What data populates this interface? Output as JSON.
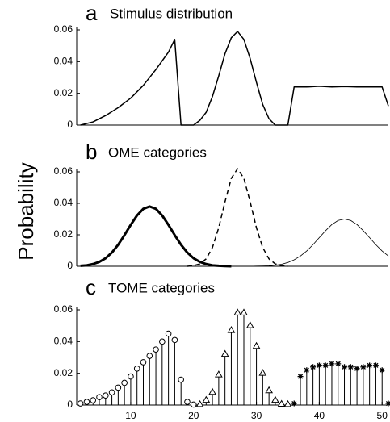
{
  "ylabel": "Probability",
  "chart_data": [
    {
      "type": "line",
      "panel_label": "a",
      "title": "Stimulus distribution",
      "x": [
        2,
        4,
        6,
        8,
        10,
        12,
        14,
        16,
        17,
        18,
        20,
        21,
        22,
        23,
        24,
        25,
        26,
        27,
        28,
        29,
        30,
        31,
        32,
        33,
        35,
        36,
        38,
        40,
        42,
        44,
        46,
        48,
        50,
        51
      ],
      "series": [
        {
          "color": "#000000",
          "line_style": "solid",
          "line_width": 1.5,
          "values": [
            0,
            0.002,
            0.006,
            0.011,
            0.017,
            0.025,
            0.035,
            0.046,
            0.054,
            0,
            0,
            0.003,
            0.008,
            0.018,
            0.031,
            0.045,
            0.055,
            0.059,
            0.054,
            0.042,
            0.027,
            0.013,
            0.004,
            0,
            0,
            0.024,
            0.024,
            0.0245,
            0.024,
            0.0243,
            0.024,
            0.024,
            0.024,
            0.012
          ]
        }
      ],
      "xlim": [
        1.4,
        51
      ],
      "ylim": [
        0,
        0.06
      ],
      "yticks": [
        0,
        {
          "value": 0.02,
          "label": "0.02"
        },
        {
          "value": 0.04,
          "label": "0.04"
        },
        {
          "value": 0.06,
          "label": "0.06"
        }
      ]
    },
    {
      "type": "line",
      "panel_label": "b",
      "title": "OME categories",
      "x": [
        2,
        3,
        4,
        5,
        6,
        7,
        8,
        9,
        10,
        11,
        12,
        13,
        14,
        15,
        16,
        17,
        18,
        19,
        20,
        21,
        22,
        23,
        24,
        25,
        26,
        27,
        28,
        29,
        30,
        31,
        32,
        33,
        34,
        35,
        36,
        37,
        38,
        39,
        40,
        41,
        42,
        43,
        44,
        45,
        46,
        47,
        48,
        49,
        50,
        51
      ],
      "series": [
        {
          "color": "#000000",
          "line_style": "solid",
          "line_width": 3,
          "values": [
            0.0003,
            0.0006,
            0.0014,
            0.0028,
            0.0051,
            0.0087,
            0.0137,
            0.0198,
            0.0263,
            0.0323,
            0.0365,
            0.038,
            0.0365,
            0.0323,
            0.0263,
            0.0198,
            0.0137,
            0.0087,
            0.0051,
            0.0028,
            0.0014,
            0.0006,
            0.0003,
            0.0001,
            0,
            null,
            null,
            null,
            null,
            null,
            null,
            null,
            null,
            null,
            null,
            null,
            null,
            null,
            null,
            null,
            null,
            null,
            null,
            null,
            null,
            null,
            null,
            null,
            null,
            null
          ]
        },
        {
          "color": "#000000",
          "line_style": "dashed",
          "line_width": 1.5,
          "values": [
            null,
            null,
            null,
            null,
            null,
            null,
            null,
            null,
            null,
            null,
            null,
            null,
            null,
            null,
            null,
            null,
            null,
            0,
            0.0004,
            0.0015,
            0.0047,
            0.0119,
            0.0245,
            0.041,
            0.0559,
            0.062,
            0.0559,
            0.041,
            0.0245,
            0.0119,
            0.0047,
            0.0015,
            0.0004,
            0,
            null,
            null,
            null,
            null,
            null,
            null,
            null,
            null,
            null,
            null,
            null,
            null,
            null,
            null,
            null,
            null
          ]
        },
        {
          "color": "#000000",
          "line_style": "solid",
          "line_width": 0.8,
          "values": [
            null,
            null,
            null,
            null,
            null,
            null,
            null,
            null,
            null,
            null,
            null,
            null,
            null,
            null,
            null,
            null,
            null,
            null,
            null,
            null,
            0,
            0,
            0,
            0,
            0,
            0,
            0,
            0,
            0.0001,
            0.0002,
            0.0003,
            0.0007,
            0.0013,
            0.0024,
            0.0041,
            0.0065,
            0.0097,
            0.0137,
            0.0182,
            0.0226,
            0.0265,
            0.0291,
            0.03,
            0.0291,
            0.0265,
            0.0226,
            0.0182,
            0.0137,
            0.0097,
            0.0065
          ]
        }
      ],
      "xlim": [
        1.4,
        51
      ],
      "ylim": [
        0,
        0.06
      ],
      "yticks": [
        0,
        {
          "value": 0.02,
          "label": "0.02"
        },
        {
          "value": 0.04,
          "label": "0.04"
        },
        {
          "value": 0.06,
          "label": "0.06"
        }
      ]
    },
    {
      "type": "stem",
      "panel_label": "c",
      "title": "TOME categories",
      "series": [
        {
          "marker": "circle",
          "color": "#000000",
          "x": [
            2,
            3,
            4,
            5,
            6,
            7,
            8,
            9,
            10,
            11,
            12,
            13,
            14,
            15,
            16,
            17,
            18,
            19,
            20
          ],
          "values": [
            0.001,
            0.002,
            0.003,
            0.005,
            0.006,
            0.008,
            0.011,
            0.014,
            0.018,
            0.023,
            0.027,
            0.031,
            0.035,
            0.04,
            0.045,
            0.041,
            0.016,
            0.002,
            0.0003
          ]
        },
        {
          "marker": "triangle",
          "color": "#000000",
          "x": [
            21,
            22,
            23,
            24,
            25,
            26,
            27,
            28,
            29,
            30,
            31,
            32,
            33,
            34,
            35
          ],
          "values": [
            0.0003,
            0.003,
            0.008,
            0.019,
            0.032,
            0.047,
            0.058,
            0.058,
            0.05,
            0.037,
            0.02,
            0.009,
            0.003,
            0.0005,
            0.0003
          ]
        },
        {
          "marker": "star",
          "color": "#000000",
          "x": [
            36,
            37,
            38,
            39,
            40,
            41,
            42,
            43,
            44,
            45,
            46,
            47,
            48,
            49,
            50,
            51
          ],
          "values": [
            0.001,
            0.018,
            0.022,
            0.024,
            0.025,
            0.025,
            0.026,
            0.026,
            0.024,
            0.024,
            0.023,
            0.024,
            0.025,
            0.025,
            0.022,
            0.001
          ]
        }
      ],
      "xlim": [
        1.4,
        51
      ],
      "ylim": [
        0,
        0.06
      ],
      "xticks": [
        10,
        20,
        30,
        40,
        50
      ],
      "yticks": [
        0,
        {
          "value": 0.02,
          "label": "0.02"
        },
        {
          "value": 0.04,
          "label": "0.04"
        },
        {
          "value": 0.06,
          "label": "0.06"
        }
      ]
    }
  ]
}
